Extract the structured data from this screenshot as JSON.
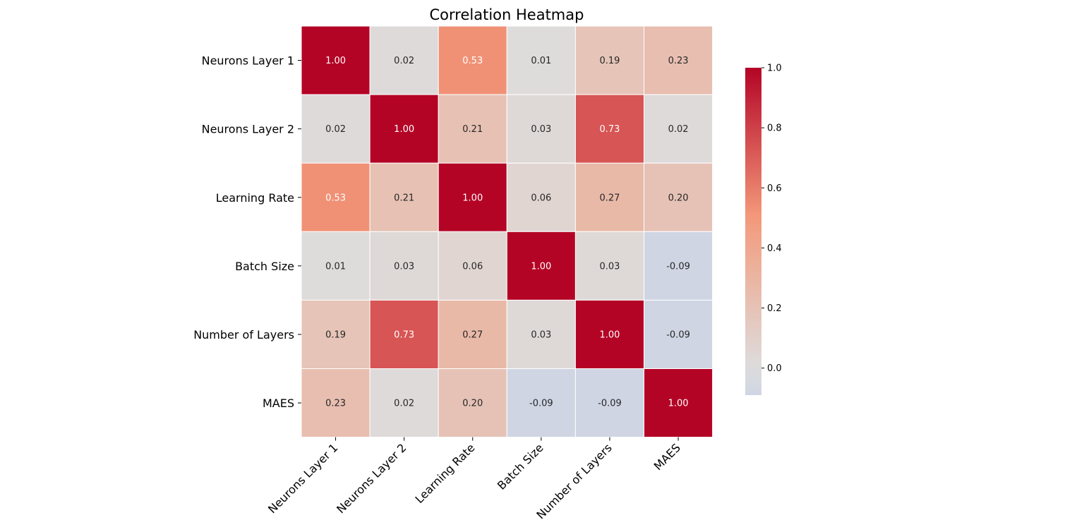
{
  "chart_data": {
    "type": "heatmap",
    "title": "Correlation Heatmap",
    "row_labels": [
      "Neurons Layer 1",
      "Neurons Layer 2",
      "Learning Rate",
      "Batch Size",
      "Number of Layers",
      "MAES"
    ],
    "col_labels": [
      "Neurons Layer 1",
      "Neurons Layer 2",
      "Learning Rate",
      "Batch Size",
      "Number of Layers",
      "MAES"
    ],
    "values": [
      [
        1.0,
        0.02,
        0.53,
        0.01,
        0.19,
        0.23
      ],
      [
        0.02,
        1.0,
        0.21,
        0.03,
        0.73,
        0.02
      ],
      [
        0.53,
        0.21,
        1.0,
        0.06,
        0.27,
        0.2
      ],
      [
        0.01,
        0.03,
        0.06,
        1.0,
        0.03,
        -0.09
      ],
      [
        0.19,
        0.73,
        0.27,
        0.03,
        1.0,
        -0.09
      ],
      [
        0.23,
        0.02,
        0.2,
        -0.09,
        -0.09,
        1.0
      ]
    ],
    "value_format": "%.2f",
    "colormap": "coolwarm",
    "colorbar": {
      "min": -0.09,
      "max": 1.0,
      "ticks": [
        0.0,
        0.2,
        0.4,
        0.6,
        0.8,
        1.0
      ],
      "tick_labels": [
        "0.0",
        "0.2",
        "0.4",
        "0.6",
        "0.8",
        "1.0"
      ]
    },
    "cell_border_color": "#ffffff"
  }
}
